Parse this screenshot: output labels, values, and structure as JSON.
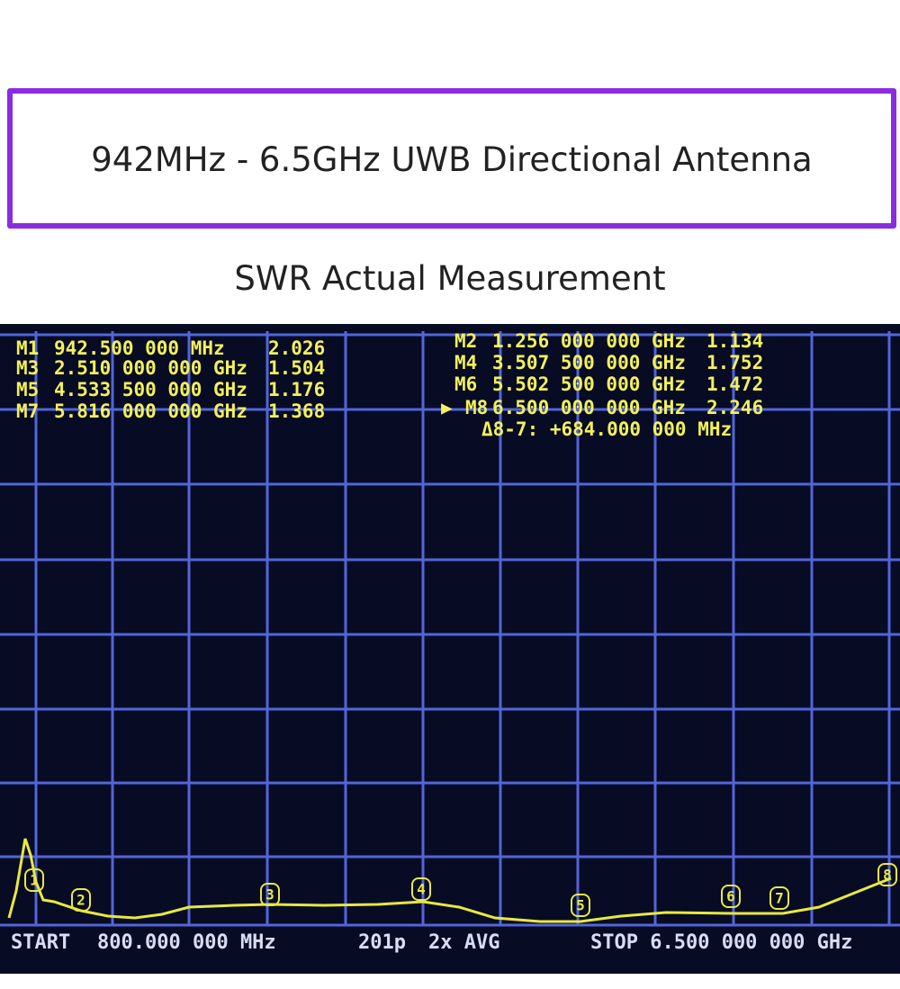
{
  "header": {
    "title": "942MHz - 6.5GHz UWB Directional Antenna",
    "subtitle": "SWR Actual Measurement"
  },
  "screen": {
    "markers": [
      {
        "label": "M1",
        "frequency": "942.500 000 MHz",
        "swr": "2.026"
      },
      {
        "label": "M2",
        "frequency": "1.256 000 000 GHz",
        "swr": "1.134"
      },
      {
        "label": "M3",
        "frequency": "2.510 000 000 GHz",
        "swr": "1.504"
      },
      {
        "label": "M4",
        "frequency": "3.507 500 000 GHz",
        "swr": "1.752"
      },
      {
        "label": "M5",
        "frequency": "4.533 500 000 GHz",
        "swr": "1.176"
      },
      {
        "label": "M6",
        "frequency": "5.502 500 000 GHz",
        "swr": "1.472"
      },
      {
        "label": "M7",
        "frequency": "5.816 000 000 GHz",
        "swr": "1.368"
      },
      {
        "label": "M8",
        "frequency": "6.500 000 000 GHz",
        "swr": "2.246"
      }
    ],
    "delta": "Δ8-7: +684.000 000 MHz",
    "trace_markers": [
      "1",
      "2",
      "3",
      "4",
      "5",
      "6",
      "7",
      "8"
    ],
    "footer": {
      "start": "START",
      "start_frequency": "800.000 000 MHz",
      "points": "201p",
      "average": "2x AVG",
      "stop": "STOP 6.500 000 000 GHz"
    }
  }
}
